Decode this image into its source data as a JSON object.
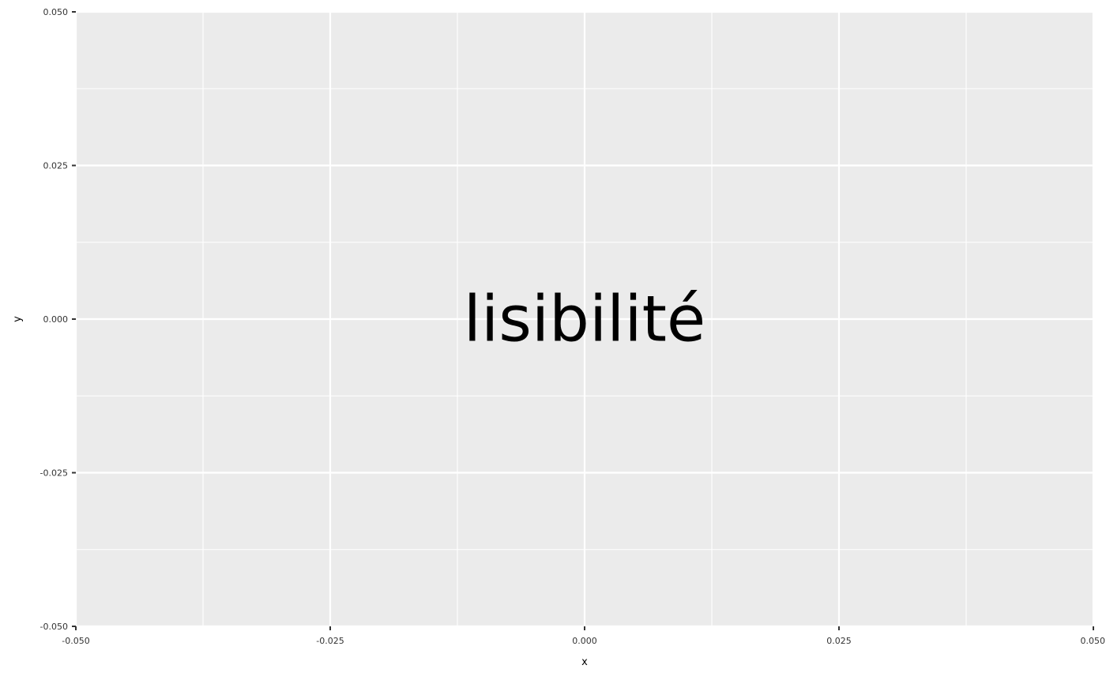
{
  "chart_data": {
    "type": "scatter",
    "xlabel": "x",
    "ylabel": "y",
    "xlim": [
      -0.05,
      0.05
    ],
    "ylim": [
      -0.05,
      0.05
    ],
    "x_ticks": [
      -0.05,
      -0.025,
      0.0,
      0.025,
      0.05
    ],
    "x_tick_labels": [
      "-0.050",
      "-0.025",
      "0.000",
      "0.025",
      "0.050"
    ],
    "y_ticks": [
      -0.05,
      -0.025,
      0.0,
      0.025,
      0.05
    ],
    "y_tick_labels": [
      "-0.050",
      "-0.025",
      "0.000",
      "0.025",
      "0.050"
    ],
    "grid": true,
    "annotation": {
      "text": "lisibilité",
      "x": 0.0,
      "y": 0.0
    },
    "colors": {
      "panel_background": "#ebebeb",
      "grid_line": "#ffffff",
      "text": "#000000",
      "tick_label": "#333333",
      "tick_mark": "#333333"
    }
  }
}
